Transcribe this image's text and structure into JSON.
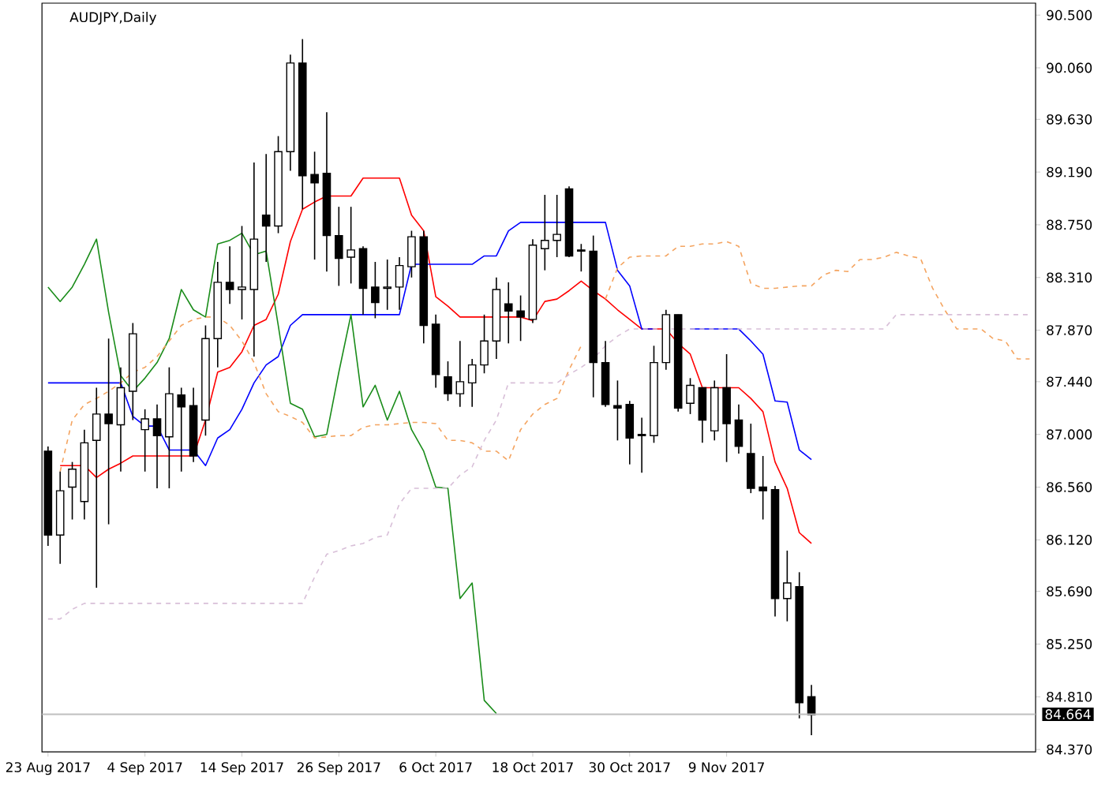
{
  "chart_data": {
    "type": "candlestick",
    "title": "AUDJPY,Daily",
    "categories": [
      "23 Aug 2017",
      null,
      null,
      null,
      null,
      null,
      null,
      null,
      "4 Sep 2017",
      null,
      null,
      null,
      null,
      null,
      null,
      null,
      "14 Sep 2017",
      null,
      null,
      null,
      null,
      null,
      null,
      null,
      "26 Sep 2017",
      null,
      null,
      null,
      null,
      null,
      null,
      null,
      "6 Oct 2017",
      null,
      null,
      null,
      null,
      null,
      null,
      null,
      "18 Oct 2017",
      null,
      null,
      null,
      null,
      null,
      null,
      null,
      "30 Oct 2017",
      null,
      null,
      null,
      null,
      null,
      null,
      null,
      "9 Nov 2017",
      null,
      null,
      null,
      null,
      null,
      null,
      null,
      null,
      null,
      null,
      null,
      null,
      null,
      null,
      null,
      null,
      null,
      null,
      null,
      null,
      null,
      null,
      null,
      null,
      null
    ],
    "ohlc": [
      [
        86.86,
        86.9,
        86.07,
        86.16
      ],
      [
        86.16,
        86.69,
        85.92,
        86.53
      ],
      [
        86.56,
        86.77,
        86.29,
        86.71
      ],
      [
        86.44,
        87.04,
        86.29,
        86.93
      ],
      [
        86.95,
        87.39,
        85.72,
        87.17
      ],
      [
        87.17,
        87.8,
        86.25,
        87.09
      ],
      [
        87.08,
        87.56,
        86.69,
        87.39
      ],
      [
        87.36,
        87.93,
        87.12,
        87.84
      ],
      [
        87.04,
        87.21,
        86.69,
        87.13
      ],
      [
        87.13,
        87.25,
        86.55,
        86.99
      ],
      [
        86.98,
        87.56,
        86.55,
        87.34
      ],
      [
        87.33,
        87.39,
        86.69,
        87.23
      ],
      [
        87.24,
        87.39,
        86.77,
        86.82
      ],
      [
        87.12,
        87.91,
        86.99,
        87.8
      ],
      [
        87.8,
        88.44,
        87.56,
        88.27
      ],
      [
        88.27,
        88.57,
        88.09,
        88.21
      ],
      [
        88.21,
        88.74,
        87.96,
        88.23
      ],
      [
        88.21,
        89.27,
        87.65,
        88.63
      ],
      [
        88.83,
        89.34,
        88.44,
        88.74
      ],
      [
        88.74,
        89.49,
        88.68,
        89.36
      ],
      [
        89.36,
        90.17,
        89.2,
        90.1
      ],
      [
        90.1,
        90.3,
        88.88,
        89.16
      ],
      [
        89.17,
        89.36,
        88.46,
        89.1
      ],
      [
        89.18,
        89.69,
        88.36,
        88.66
      ],
      [
        88.66,
        88.9,
        88.24,
        88.47
      ],
      [
        88.48,
        88.9,
        88.26,
        88.54
      ],
      [
        88.55,
        88.57,
        88.0,
        88.22
      ],
      [
        88.23,
        88.44,
        87.97,
        88.1
      ],
      [
        88.22,
        88.46,
        88.04,
        88.23
      ],
      [
        88.23,
        88.48,
        88.04,
        88.41
      ],
      [
        88.4,
        88.7,
        88.31,
        88.65
      ],
      [
        88.65,
        88.7,
        87.76,
        87.91
      ],
      [
        87.92,
        88.0,
        87.39,
        87.5
      ],
      [
        87.48,
        87.61,
        87.28,
        87.34
      ],
      [
        87.34,
        87.78,
        87.23,
        87.44
      ],
      [
        87.43,
        87.63,
        87.23,
        87.58
      ],
      [
        87.58,
        88.0,
        87.51,
        87.78
      ],
      [
        87.78,
        88.31,
        87.63,
        88.21
      ],
      [
        88.09,
        88.27,
        87.76,
        88.03
      ],
      [
        88.03,
        88.16,
        87.78,
        87.98
      ],
      [
        87.96,
        88.63,
        87.93,
        88.58
      ],
      [
        88.55,
        89.0,
        88.37,
        88.62
      ],
      [
        88.62,
        89.0,
        88.48,
        88.67
      ],
      [
        89.05,
        89.07,
        88.48,
        88.49
      ],
      [
        88.54,
        88.59,
        88.36,
        88.53
      ],
      [
        88.53,
        88.66,
        87.31,
        87.6
      ],
      [
        87.6,
        87.78,
        87.23,
        87.25
      ],
      [
        87.24,
        87.45,
        86.95,
        87.22
      ],
      [
        87.25,
        87.28,
        86.75,
        86.97
      ],
      [
        87.0,
        87.14,
        86.68,
        86.99
      ],
      [
        86.99,
        87.74,
        86.93,
        87.6
      ],
      [
        87.6,
        88.04,
        87.54,
        88.0
      ],
      [
        88.0,
        88.0,
        87.19,
        87.22
      ],
      [
        87.26,
        87.47,
        87.17,
        87.41
      ],
      [
        87.39,
        87.39,
        86.93,
        87.12
      ],
      [
        87.03,
        87.45,
        86.95,
        87.39
      ],
      [
        87.39,
        87.67,
        86.77,
        87.09
      ],
      [
        87.12,
        87.25,
        86.84,
        86.9
      ],
      [
        86.84,
        87.09,
        86.51,
        86.55
      ],
      [
        86.56,
        86.82,
        86.29,
        86.53
      ],
      [
        86.54,
        86.57,
        85.48,
        85.63
      ],
      [
        85.63,
        86.03,
        85.44,
        85.76
      ],
      [
        85.73,
        85.85,
        84.63,
        84.76
      ],
      [
        84.81,
        84.91,
        84.49,
        84.66
      ],
      null,
      null,
      null,
      null,
      null,
      null,
      null,
      null,
      null,
      null,
      null,
      null,
      null,
      null,
      null,
      null,
      null,
      null
    ],
    "series": [
      {
        "type": "line",
        "color": "#ff0000",
        "line_style": "solid",
        "values": [
          null,
          86.74,
          86.74,
          86.74,
          86.64,
          86.71,
          86.76,
          86.82,
          86.82,
          86.82,
          86.82,
          86.82,
          86.82,
          87.12,
          87.52,
          87.56,
          87.69,
          87.91,
          87.96,
          88.17,
          88.61,
          88.88,
          88.94,
          88.99,
          88.99,
          88.99,
          89.14,
          89.14,
          89.14,
          89.14,
          88.83,
          88.7,
          88.15,
          88.07,
          87.98,
          87.98,
          87.98,
          87.98,
          87.98,
          87.98,
          87.95,
          88.11,
          88.13,
          88.2,
          88.28,
          88.2,
          88.13,
          88.04,
          87.96,
          87.88,
          87.88,
          87.88,
          87.76,
          87.67,
          87.39,
          87.39,
          87.39,
          87.39,
          87.3,
          87.19,
          86.77,
          86.55,
          86.18,
          86.09,
          null,
          null,
          null,
          null,
          null,
          null,
          null,
          null,
          null,
          null,
          null,
          null,
          null,
          null,
          null,
          null,
          null,
          null
        ]
      },
      {
        "type": "line",
        "color": "#0000ff",
        "line_style": "solid",
        "values": [
          87.43,
          87.43,
          87.43,
          87.43,
          87.43,
          87.43,
          87.43,
          87.15,
          87.07,
          87.07,
          86.87,
          86.87,
          86.87,
          86.74,
          86.97,
          87.04,
          87.21,
          87.43,
          87.58,
          87.65,
          87.91,
          88.0,
          88.0,
          88.0,
          88.0,
          88.0,
          88.0,
          88.0,
          88.0,
          88.0,
          88.42,
          88.42,
          88.42,
          88.42,
          88.42,
          88.42,
          88.49,
          88.49,
          88.7,
          88.77,
          88.77,
          88.77,
          88.77,
          88.77,
          88.77,
          88.77,
          88.77,
          88.37,
          88.24,
          87.88,
          87.88,
          null,
          null,
          87.88,
          87.88,
          87.88,
          87.88,
          87.88,
          87.78,
          87.67,
          87.28,
          87.27,
          86.87,
          86.79,
          null,
          null,
          null,
          null,
          null,
          null,
          null,
          null,
          null,
          null,
          null,
          null,
          null,
          null,
          null,
          null,
          null,
          null
        ]
      },
      {
        "type": "line",
        "color": "#1a8c1a",
        "line_style": "solid",
        "values": [
          88.23,
          88.11,
          88.23,
          88.42,
          88.63,
          88.02,
          87.49,
          87.36,
          87.47,
          87.6,
          87.8,
          88.21,
          88.04,
          87.98,
          88.59,
          88.62,
          88.68,
          88.5,
          88.53,
          87.91,
          87.26,
          87.21,
          86.98,
          87.0,
          87.52,
          88.0,
          87.23,
          87.41,
          87.12,
          87.36,
          87.04,
          86.86,
          86.56,
          86.55,
          85.63,
          85.76,
          84.78,
          84.67,
          null,
          null,
          null,
          null,
          null,
          null,
          null,
          null,
          null,
          null,
          null,
          null,
          null,
          null,
          null,
          null,
          null,
          null,
          null,
          null,
          null,
          null,
          null,
          null,
          null,
          null,
          null,
          null,
          null,
          null,
          null,
          null,
          null,
          null,
          null,
          null,
          null,
          null,
          null,
          null,
          null,
          null,
          null,
          null
        ]
      },
      {
        "type": "line",
        "color": "#f4a460",
        "line_style": "dashed",
        "values": [
          null,
          86.69,
          87.12,
          87.25,
          87.3,
          87.36,
          87.43,
          87.52,
          87.56,
          87.65,
          87.78,
          87.91,
          87.96,
          87.98,
          87.98,
          87.91,
          87.78,
          87.6,
          87.34,
          87.19,
          87.15,
          87.1,
          86.97,
          86.98,
          86.99,
          86.99,
          87.06,
          87.08,
          87.08,
          87.09,
          87.1,
          87.1,
          87.09,
          86.95,
          86.95,
          86.93,
          86.86,
          86.86,
          86.78,
          87.04,
          87.17,
          87.25,
          87.3,
          87.54,
          87.74,
          null,
          88.13,
          88.39,
          88.48,
          88.49,
          88.49,
          88.49,
          88.57,
          88.57,
          88.59,
          88.59,
          88.61,
          88.57,
          88.26,
          88.22,
          88.22,
          88.23,
          88.24,
          88.24,
          88.33,
          88.37,
          88.36,
          88.46,
          88.46,
          88.48,
          88.52,
          88.49,
          88.47,
          88.22,
          88.04,
          87.88,
          87.88,
          87.88,
          87.8,
          87.78,
          87.63,
          87.63
        ]
      },
      {
        "type": "line",
        "color": "#d8bfd8",
        "line_style": "dashed",
        "values": [
          85.46,
          85.46,
          85.54,
          85.59,
          85.59,
          85.59,
          85.59,
          85.59,
          85.59,
          85.59,
          85.59,
          85.59,
          85.59,
          85.59,
          85.59,
          85.59,
          85.59,
          85.59,
          85.59,
          85.59,
          85.59,
          85.59,
          85.81,
          86.0,
          86.03,
          86.07,
          86.09,
          86.14,
          86.16,
          86.42,
          86.55,
          86.55,
          86.55,
          86.55,
          86.66,
          86.73,
          86.95,
          87.12,
          87.43,
          87.43,
          87.43,
          87.43,
          87.43,
          87.5,
          87.56,
          87.63,
          87.74,
          87.82,
          87.88,
          87.88,
          87.88,
          87.88,
          87.88,
          87.88,
          87.88,
          87.88,
          87.88,
          87.88,
          87.88,
          87.88,
          87.88,
          87.88,
          87.88,
          87.88,
          87.88,
          87.88,
          87.88,
          87.88,
          87.88,
          87.88,
          88.0,
          88.0,
          88.0,
          88.0,
          88.0,
          88.0,
          88.0,
          88.0,
          88.0,
          88.0,
          88.0,
          88.0
        ]
      }
    ],
    "ylim": [
      84.35,
      90.6
    ],
    "yticks": [
      {
        "value": 84.37,
        "label": "84.370"
      },
      {
        "value": 84.81,
        "label": "84.810"
      },
      {
        "value": 85.25,
        "label": "85.250"
      },
      {
        "value": 85.69,
        "label": "85.690"
      },
      {
        "value": 86.12,
        "label": "86.120"
      },
      {
        "value": 86.56,
        "label": "86.560"
      },
      {
        "value": 87.0,
        "label": "87.000"
      },
      {
        "value": 87.44,
        "label": "87.440"
      },
      {
        "value": 87.87,
        "label": "87.870"
      },
      {
        "value": 88.31,
        "label": "88.310"
      },
      {
        "value": 88.75,
        "label": "88.750"
      },
      {
        "value": 89.19,
        "label": "89.190"
      },
      {
        "value": 89.63,
        "label": "89.630"
      },
      {
        "value": 90.06,
        "label": "90.060"
      },
      {
        "value": 90.5,
        "label": "90.500"
      }
    ],
    "ref_lines": [
      {
        "axis": "y",
        "value": 84.664,
        "label": "84.664",
        "color": "#c0c0c0"
      }
    ]
  }
}
